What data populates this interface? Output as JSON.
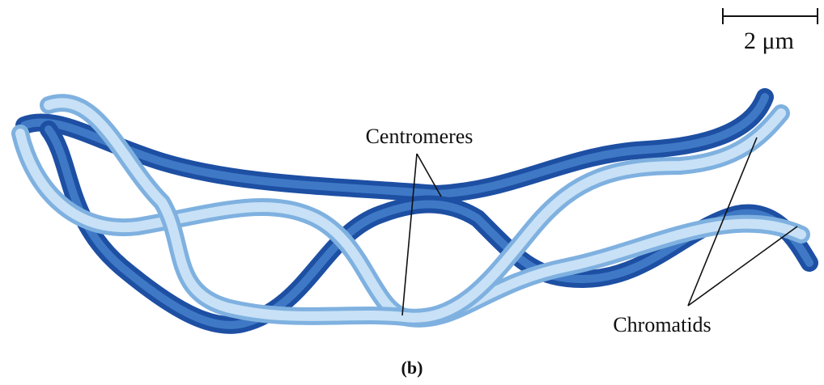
{
  "scale_bar": {
    "label": "2 μm"
  },
  "labels": {
    "centromeres": "Centromeres",
    "chromatids": "Chromatids"
  },
  "caption": "(b)"
}
